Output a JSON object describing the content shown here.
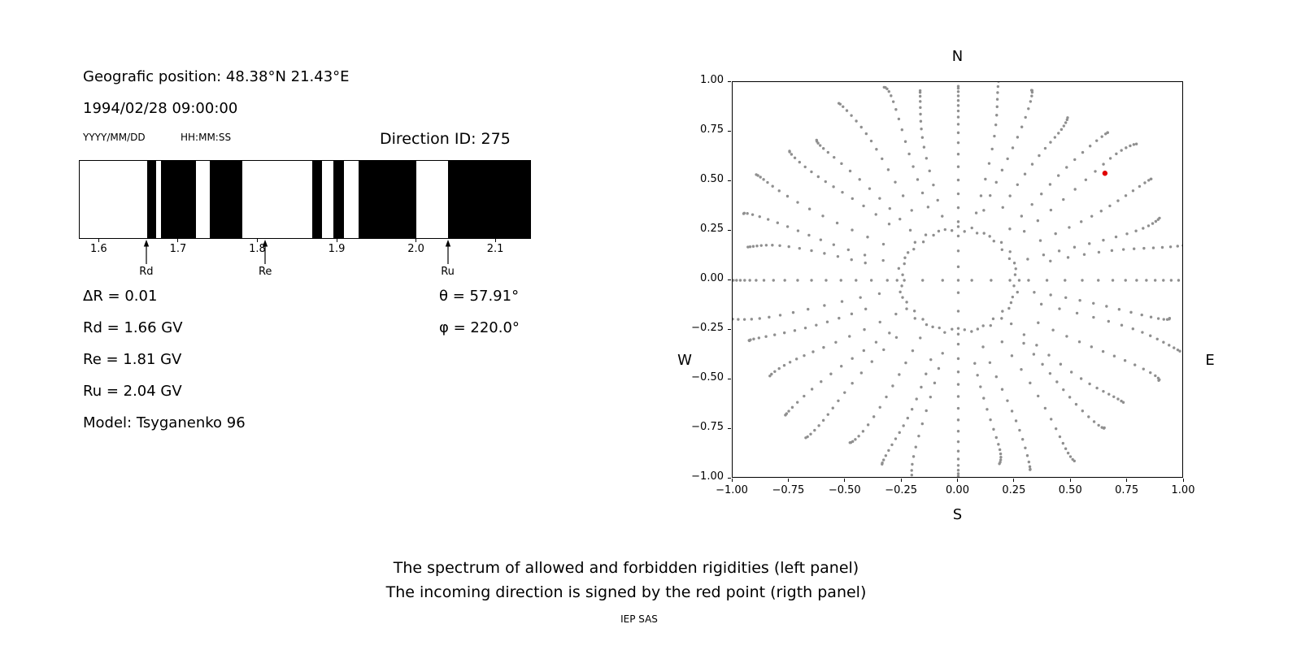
{
  "left_panel": {
    "geo_position": "Geografic position: 48.38°N 21.43°E",
    "datetime": "1994/02/28 09:00:00",
    "date_format_label": "YYYY/MM/DD",
    "time_format_label": "HH:MM:SS",
    "direction_id_label": "Direction ID: 275",
    "params_left": [
      "ΔR = 0.01",
      "Rd = 1.66 GV",
      "Re = 1.81 GV",
      "Ru = 2.04 GV",
      "Model: Tsyganenko 96"
    ],
    "params_right": [
      "θ = 57.91°",
      "φ = 220.0°"
    ]
  },
  "right_panel": {
    "compass": {
      "top": "N",
      "bottom": "S",
      "left": "W",
      "right": "E"
    }
  },
  "caption": {
    "line1": "The spectrum of allowed and forbidden rigidities (left panel)",
    "line2": "The incoming direction is signed by the red point (rigth panel)",
    "credit": "IEP SAS"
  },
  "chart_data": [
    {
      "type": "bar",
      "panel": "left-spectrum",
      "xlim": [
        1.575,
        2.145
      ],
      "xticks": [
        1.6,
        1.7,
        1.8,
        1.9,
        2.0,
        2.1
      ],
      "forbidden_bands_GV": [
        [
          1.66,
          1.672
        ],
        [
          1.678,
          1.722
        ],
        [
          1.74,
          1.781
        ],
        [
          1.869,
          1.882
        ],
        [
          1.896,
          1.909
        ],
        [
          1.928,
          2.001
        ],
        [
          2.041,
          2.145
        ]
      ],
      "markers": [
        {
          "label": "Rd",
          "value_GV": 1.66
        },
        {
          "label": "Re",
          "value_GV": 1.81
        },
        {
          "label": "Ru",
          "value_GV": 2.04
        }
      ],
      "delta_R_GV": 0.01,
      "Rd_GV": 1.66,
      "Re_GV": 1.81,
      "Ru_GV": 2.04,
      "model": "Tsyganenko 96",
      "theta_deg": 57.91,
      "phi_deg": 220.0,
      "direction_id": 275,
      "band_color": "#000000",
      "allowed_color": "#ffffff"
    },
    {
      "type": "scatter",
      "panel": "right-direction-map",
      "xlim": [
        -1,
        1
      ],
      "ylim": [
        -1,
        1
      ],
      "xticks": [
        -1.0,
        -0.75,
        -0.5,
        -0.25,
        0.0,
        0.25,
        0.5,
        0.75,
        1.0
      ],
      "yticks": [
        -1.0,
        -0.75,
        -0.5,
        -0.25,
        0.0,
        0.25,
        0.5,
        0.75,
        1.0
      ],
      "dot_color": "#8f8f8f",
      "red_point": {
        "x": 0.65,
        "y": 0.54,
        "color": "#e00000"
      },
      "pattern": {
        "description": "36 radial spokes of gray dots every 10 degrees, dots denser toward the rim, inner ring of dots around center, cardinal spokes pass through the center",
        "spokes": 36,
        "spoke_step_deg": 10,
        "ring_radius": 0.26,
        "ring_dots": 56,
        "spoke_inner_radius": 0.38,
        "spoke_outer_radius": 1.0,
        "dots_per_spoke": 15,
        "dots_per_cardinal": 20,
        "cardinal_inner_radius": 0.06
      }
    }
  ]
}
